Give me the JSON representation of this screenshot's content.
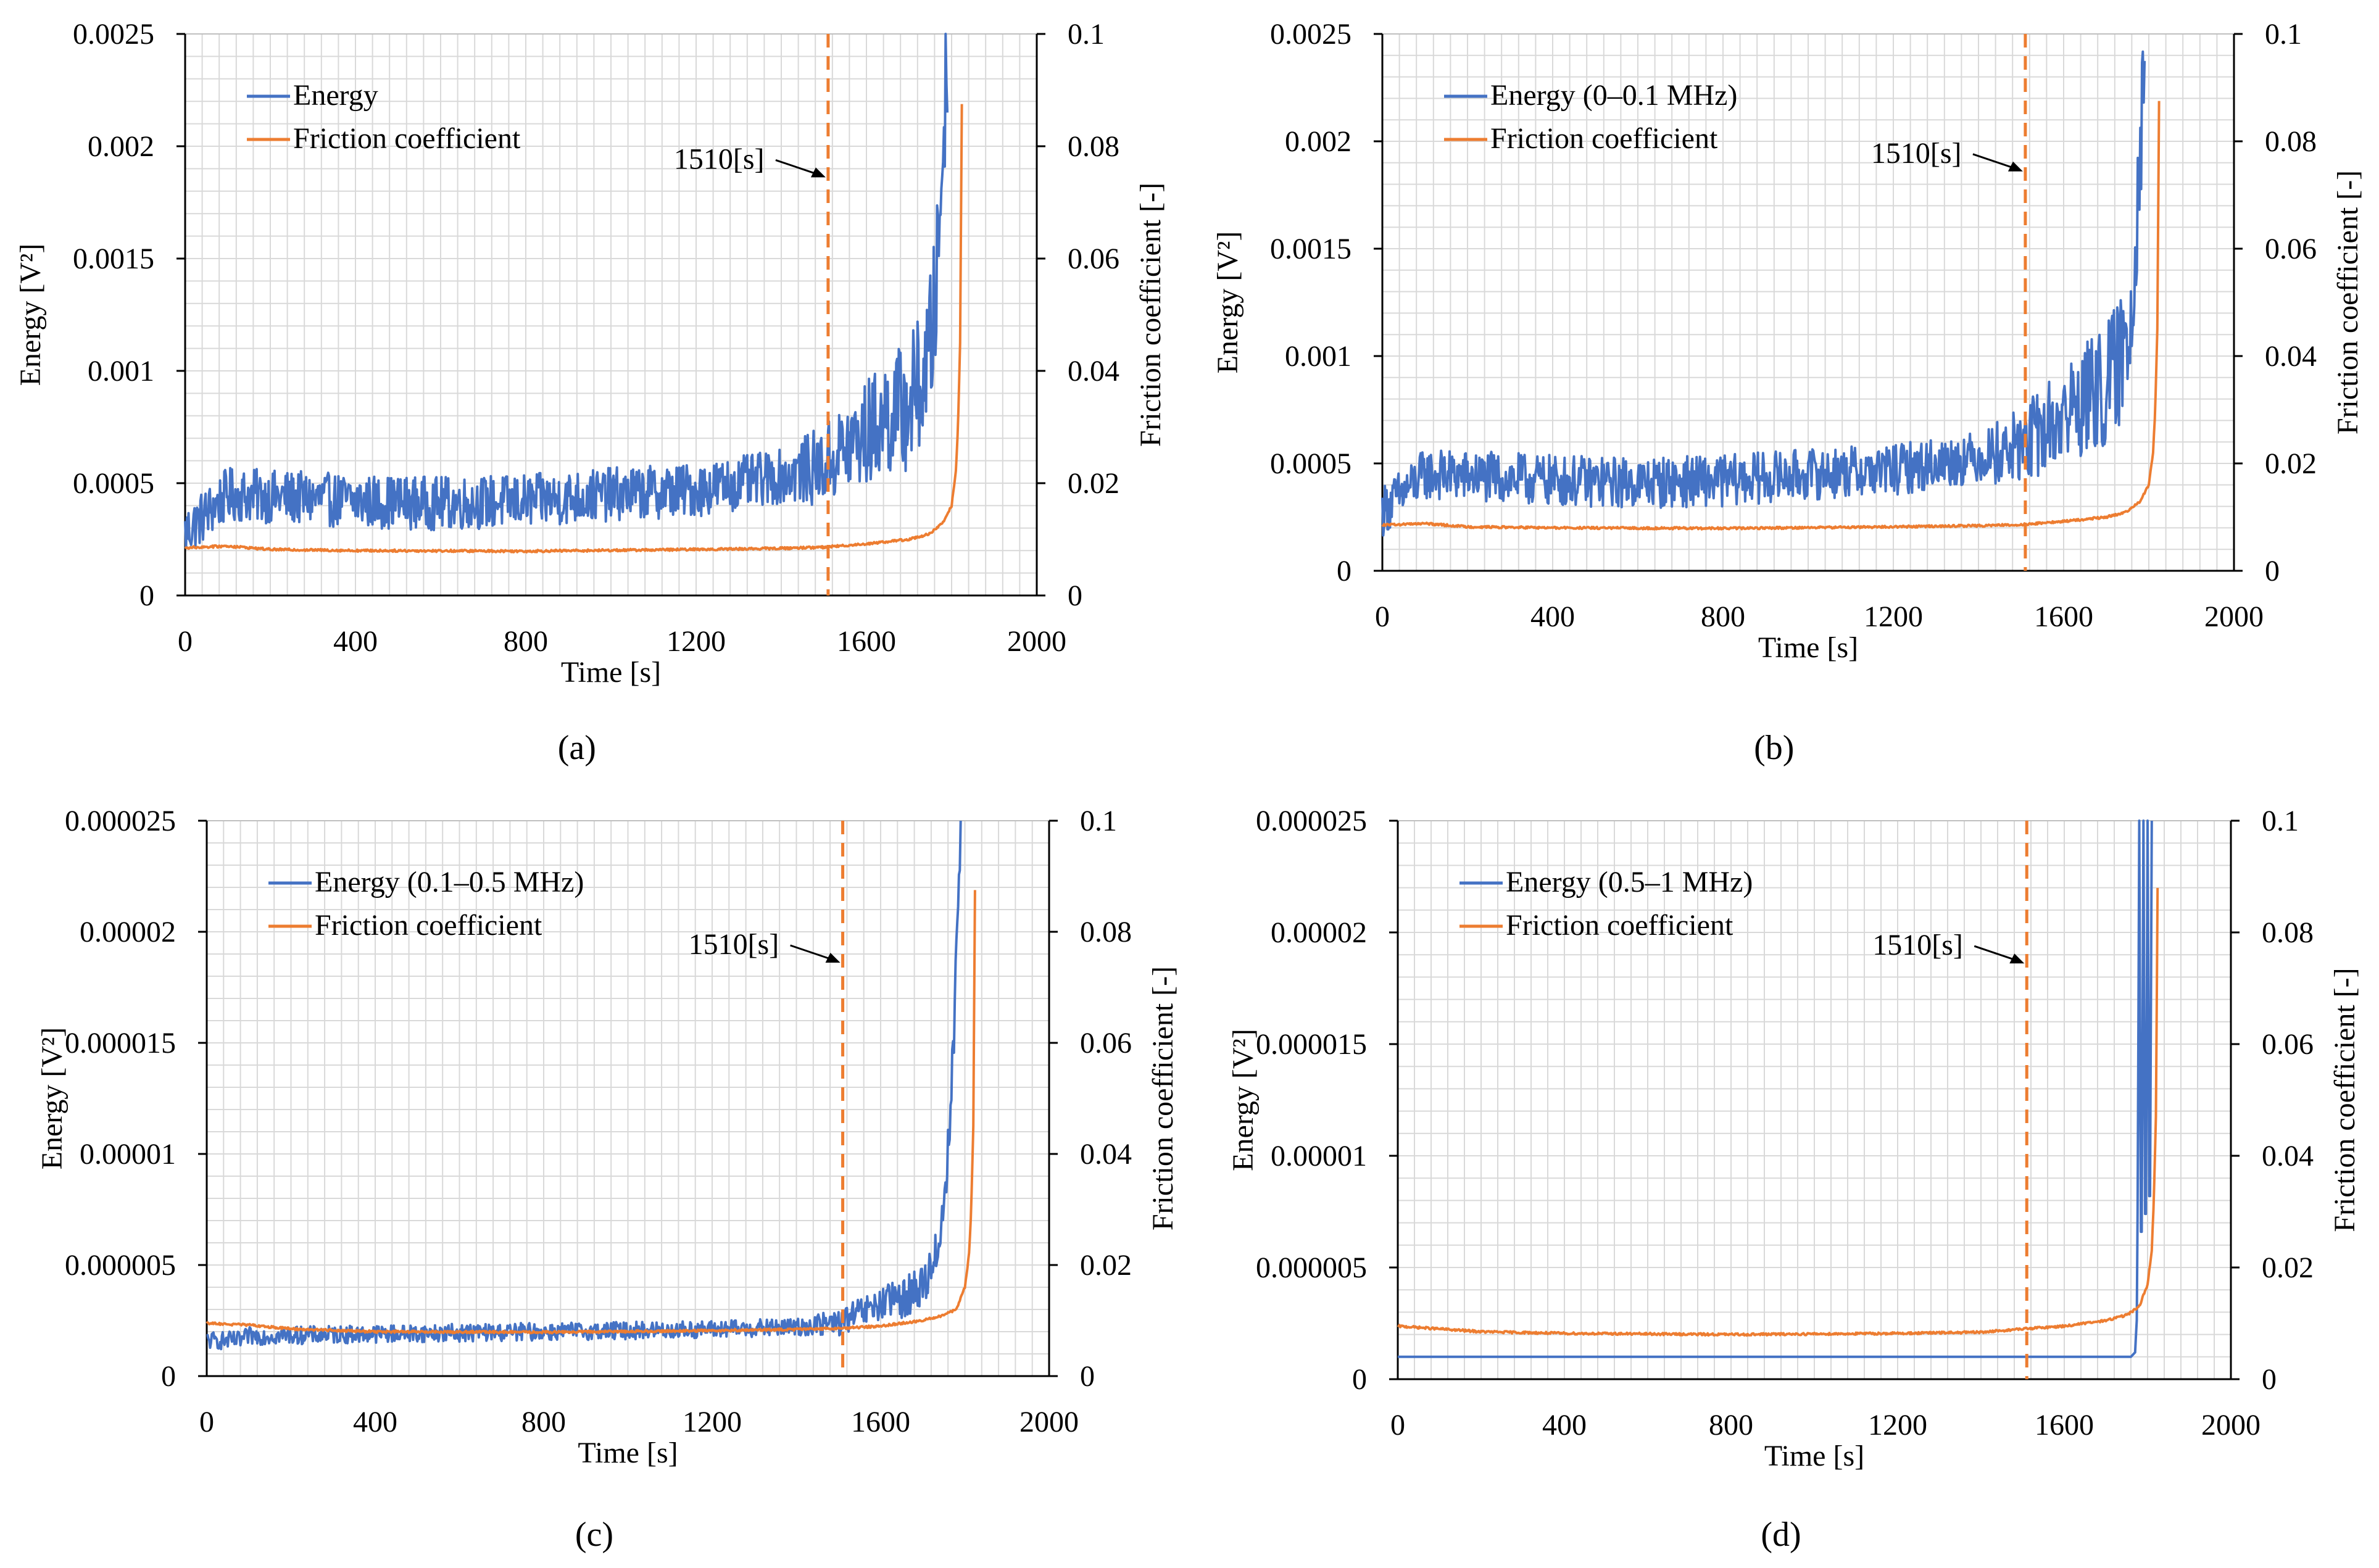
{
  "colors": {
    "energy": "#4472c4",
    "friction": "#ed7d31",
    "grid": "#d9d9d9",
    "axis": "#000000"
  },
  "chart_data": [
    {
      "id": "a",
      "type": "line",
      "caption": "(a)",
      "xlabel": "Time [s]",
      "ylabel": "Energy    [V²]",
      "y2label": "Friction coefficient  [-]",
      "xlim": [
        0,
        2000
      ],
      "ylim": [
        0,
        0.0025
      ],
      "y2lim": [
        0,
        0.1
      ],
      "xticks": [
        "0",
        "400",
        "800",
        "1200",
        "1600",
        "2000"
      ],
      "yticks": [
        "0",
        "0.0005",
        "0.001",
        "0.0015",
        "0.002",
        "0.0025"
      ],
      "y2ticks": [
        "0",
        "0.02",
        "0.04",
        "0.06",
        "0.08",
        "0.1"
      ],
      "legend_position": "top-left",
      "annotation": {
        "text": "1510[s]",
        "x": 1510
      },
      "series": [
        {
          "name": "Energy",
          "axis": "left",
          "color": "#4472c4",
          "x": [
            0,
            100,
            200,
            400,
            600,
            800,
            1000,
            1200,
            1300,
            1400,
            1500,
            1550,
            1600,
            1650,
            1700,
            1740,
            1760,
            1780,
            1790
          ],
          "y": [
            0.00028,
            0.00045,
            0.00044,
            0.00042,
            0.00041,
            0.00042,
            0.00045,
            0.00047,
            0.0005,
            0.00053,
            0.00058,
            0.00065,
            0.00072,
            0.0008,
            0.00085,
            0.001,
            0.00125,
            0.002,
            0.0025
          ],
          "noise": 0.00012
        },
        {
          "name": "Friction coefficient",
          "axis": "right",
          "color": "#ed7d31",
          "x": [
            0,
            100,
            200,
            400,
            800,
            1200,
            1400,
            1500,
            1600,
            1700,
            1750,
            1780,
            1800,
            1810,
            1815,
            1820,
            1825
          ],
          "y": [
            0.0085,
            0.0088,
            0.0082,
            0.008,
            0.0079,
            0.0082,
            0.0084,
            0.0086,
            0.0092,
            0.01,
            0.011,
            0.013,
            0.016,
            0.022,
            0.03,
            0.045,
            0.098
          ],
          "noise": 0.0002
        }
      ]
    },
    {
      "id": "b",
      "type": "line",
      "caption": "(b)",
      "xlabel": "Time [s]",
      "ylabel": "Energy    [V²]",
      "y2label": "Friction coefficient  [-]",
      "xlim": [
        0,
        2000
      ],
      "ylim": [
        0,
        0.0025
      ],
      "y2lim": [
        0,
        0.1
      ],
      "xticks": [
        "0",
        "400",
        "800",
        "1200",
        "1600",
        "2000"
      ],
      "yticks": [
        "0",
        "0.0005",
        "0.001",
        "0.0015",
        "0.002",
        "0.0025"
      ],
      "y2ticks": [
        "0",
        "0.02",
        "0.04",
        "0.06",
        "0.08",
        "0.1"
      ],
      "legend_position": "top-left",
      "annotation": {
        "text": "1510[s]",
        "x": 1510
      },
      "series": [
        {
          "name": "Energy (0–0.1 MHz)",
          "axis": "left",
          "color": "#4472c4",
          "x": [
            0,
            100,
            200,
            400,
            600,
            800,
            1000,
            1200,
            1300,
            1400,
            1500,
            1550,
            1600,
            1650,
            1700,
            1740,
            1760,
            1780,
            1790
          ],
          "y": [
            0.00028,
            0.00045,
            0.00044,
            0.00042,
            0.00041,
            0.00042,
            0.00045,
            0.00047,
            0.0005,
            0.00053,
            0.00058,
            0.00065,
            0.00072,
            0.0008,
            0.00085,
            0.001,
            0.00125,
            0.002,
            0.0025
          ],
          "noise": 0.00012
        },
        {
          "name": "Friction coefficient",
          "axis": "right",
          "color": "#ed7d31",
          "x": [
            0,
            100,
            200,
            400,
            800,
            1200,
            1400,
            1500,
            1600,
            1700,
            1750,
            1780,
            1800,
            1810,
            1815,
            1820,
            1825
          ],
          "y": [
            0.0085,
            0.0088,
            0.0082,
            0.008,
            0.0079,
            0.0082,
            0.0084,
            0.0086,
            0.0092,
            0.01,
            0.011,
            0.013,
            0.016,
            0.022,
            0.03,
            0.045,
            0.098
          ],
          "noise": 0.0002
        }
      ]
    },
    {
      "id": "c",
      "type": "line",
      "caption": "(c)",
      "xlabel": "Time [s]",
      "ylabel": "Energy    [V²]",
      "y2label": "Friction coefficient  [-]",
      "xlim": [
        0,
        2000
      ],
      "ylim": [
        0,
        2.5e-05
      ],
      "y2lim": [
        0,
        0.1
      ],
      "xticks": [
        "0",
        "400",
        "800",
        "1200",
        "1600",
        "2000"
      ],
      "yticks": [
        "0",
        "0.000005",
        "0.00001",
        "0.000015",
        "0.00002",
        "0.000025"
      ],
      "y2ticks": [
        "0",
        "0.02",
        "0.04",
        "0.06",
        "0.08",
        "0.1"
      ],
      "legend_position": "top-left",
      "annotation": {
        "text": "1510[s]",
        "x": 1510
      },
      "series": [
        {
          "name": "Energy (0.1–0.5 MHz)",
          "axis": "left",
          "color": "#4472c4",
          "x": [
            0,
            80,
            100,
            400,
            800,
            1200,
            1400,
            1500,
            1550,
            1600,
            1650,
            1700,
            1740,
            1760,
            1775,
            1790
          ],
          "y": [
            1.6e-06,
            1.6e-06,
            1.8e-06,
            1.9e-06,
            2e-06,
            2.1e-06,
            2.2e-06,
            2.4e-06,
            2.8e-06,
            3.2e-06,
            3.5e-06,
            4e-06,
            6e-06,
            1e-05,
            1.6e-05,
            2.5e-05
          ],
          "noise": 4e-07
        },
        {
          "name": "Friction coefficient",
          "axis": "right",
          "color": "#ed7d31",
          "x": [
            0,
            100,
            200,
            400,
            800,
            1200,
            1400,
            1500,
            1600,
            1700,
            1750,
            1780,
            1800,
            1810,
            1815,
            1820,
            1825
          ],
          "y": [
            0.0095,
            0.0092,
            0.0085,
            0.008,
            0.0079,
            0.0082,
            0.0084,
            0.0086,
            0.009,
            0.01,
            0.011,
            0.012,
            0.016,
            0.022,
            0.03,
            0.045,
            0.098
          ],
          "noise": 0.0002
        }
      ]
    },
    {
      "id": "d",
      "type": "line",
      "caption": "(d)",
      "xlabel": "Time [s]",
      "ylabel": "Energy    [V²]",
      "y2label": "Friction coefficient  [-]",
      "xlim": [
        0,
        2000
      ],
      "ylim": [
        0,
        2.5e-05
      ],
      "y2lim": [
        0,
        0.1
      ],
      "xticks": [
        "0",
        "400",
        "800",
        "1200",
        "1600",
        "2000"
      ],
      "yticks": [
        "0",
        "0.000005",
        "0.00001",
        "0.000015",
        "0.00002",
        "0.000025"
      ],
      "y2ticks": [
        "0",
        "0.02",
        "0.04",
        "0.06",
        "0.08",
        "0.1"
      ],
      "legend_position": "top-left",
      "annotation": {
        "text": "1510[s]",
        "x": 1510
      },
      "series": [
        {
          "name": "Energy (0.5–1 MHz)",
          "axis": "left",
          "color": "#4472c4",
          "x": [
            0,
            400,
            800,
            1200,
            1600,
            1760,
            1770,
            1775,
            1780,
            1785,
            1790,
            1795,
            1800,
            1805,
            1810
          ],
          "y": [
            1e-06,
            1e-06,
            1e-06,
            1e-06,
            1e-06,
            1e-06,
            1.2e-06,
            3e-06,
            2.5e-05,
            2e-06,
            2.5e-05,
            3e-06,
            2.5e-05,
            4e-06,
            2.5e-05
          ],
          "noise": 0.0
        },
        {
          "name": "Friction coefficient",
          "axis": "right",
          "color": "#ed7d31",
          "x": [
            0,
            100,
            200,
            400,
            800,
            1200,
            1400,
            1500,
            1600,
            1700,
            1750,
            1780,
            1800,
            1810,
            1815,
            1820,
            1825
          ],
          "y": [
            0.0095,
            0.009,
            0.0085,
            0.0082,
            0.008,
            0.0082,
            0.0084,
            0.009,
            0.0095,
            0.0105,
            0.0115,
            0.013,
            0.017,
            0.023,
            0.032,
            0.047,
            0.098
          ],
          "noise": 0.0002
        }
      ]
    }
  ]
}
